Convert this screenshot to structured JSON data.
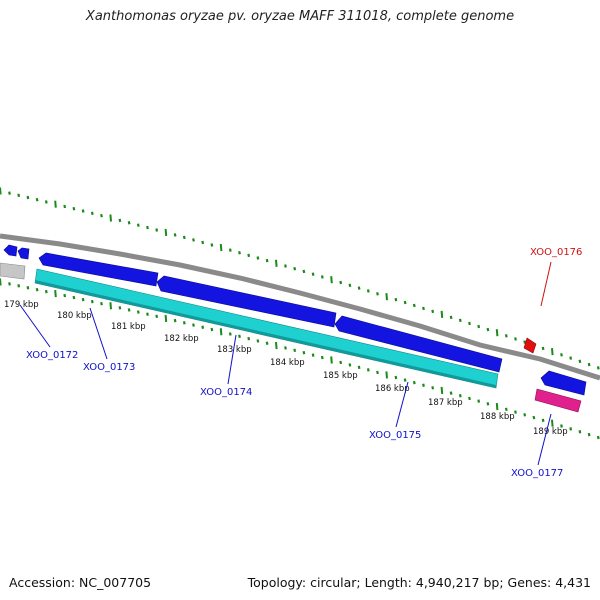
{
  "title": "Xanthomonas oryzae pv. oryzae MAFF 311018, complete genome",
  "footer": {
    "accession": "Accession: NC_007705",
    "summary": "Topology: circular; Length: 4,940,217 bp; Genes: 4,431"
  },
  "colors": {
    "backbone": "#8c8c8c",
    "tick": "#1a8a1a",
    "gene_blue": "#1414e0",
    "gene_cyan": "#1fd0d0",
    "gene_red": "#e01010",
    "gene_pink": "#e0208c",
    "gene_gray": "#c4c4c4",
    "label_blue": "#1010c8",
    "label_red": "#d01010"
  },
  "ticks": [
    {
      "label": "179 kbp"
    },
    {
      "label": "180 kbp"
    },
    {
      "label": "181 kbp"
    },
    {
      "label": "182 kbp"
    },
    {
      "label": "183 kbp"
    },
    {
      "label": "184 kbp"
    },
    {
      "label": "185 kbp"
    },
    {
      "label": "186 kbp"
    },
    {
      "label": "187 kbp"
    },
    {
      "label": "188 kbp"
    },
    {
      "label": "189 kbp"
    }
  ],
  "gene_labels": [
    {
      "id": "XOO_0172"
    },
    {
      "id": "XOO_0173"
    },
    {
      "id": "XOO_0174"
    },
    {
      "id": "XOO_0175"
    },
    {
      "id": "XOO_0176"
    },
    {
      "id": "XOO_0177"
    }
  ]
}
